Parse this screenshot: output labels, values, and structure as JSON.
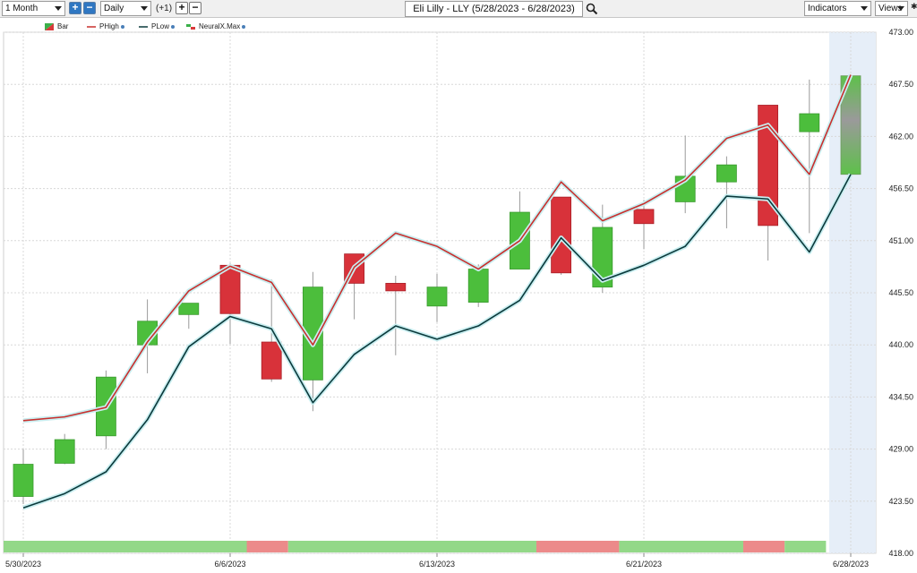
{
  "toolbar": {
    "range_select": "1 Month",
    "interval_select": "Daily",
    "offset_label": "(+1)",
    "plus_label": "+",
    "minus_label": "−",
    "title": "Eli Lilly - LLY (5/28/2023 - 6/28/2023)",
    "indicators_label": "Indicators",
    "views_label": "Views"
  },
  "legend": [
    {
      "label": "Bar",
      "color": "#d83a3a"
    },
    {
      "label": "PHigh",
      "color": "#c8302e"
    },
    {
      "label": "PLow",
      "color": "#0b3a3c"
    },
    {
      "label": "NeuralX.Max",
      "color": "#3ab04a"
    }
  ],
  "colors": {
    "up": "#4cbe3c",
    "down": "#d8323a",
    "phigh": "#c8302e",
    "plow": "#0b3a3c",
    "band_up": "#93d888",
    "band_down": "#ec8a8a",
    "forecast_shade": "#e6eef8"
  },
  "chart_data": {
    "type": "candlestick",
    "title": "Eli Lilly - LLY (5/28/2023 - 6/28/2023)",
    "ylim": [
      418.0,
      473.0
    ],
    "y_ticks": [
      "418.00",
      "423.50",
      "429.00",
      "434.50",
      "440.00",
      "445.50",
      "451.00",
      "456.50",
      "462.00",
      "467.50",
      "473.00"
    ],
    "x_tick_labels": [
      "5/30/2023",
      "6/6/2023",
      "6/13/2023",
      "6/21/2023",
      "6/28/2023"
    ],
    "x_tick_index": [
      0,
      5,
      10,
      15,
      20
    ],
    "bars": [
      {
        "o": 424.0,
        "h": 429.0,
        "l": 423.2,
        "c": 427.4
      },
      {
        "o": 427.5,
        "h": 430.6,
        "l": 427.4,
        "c": 430.0
      },
      {
        "o": 430.4,
        "h": 437.3,
        "l": 429.0,
        "c": 436.6
      },
      {
        "o": 440.0,
        "h": 444.8,
        "l": 437.0,
        "c": 442.5
      },
      {
        "o": 443.2,
        "h": 444.4,
        "l": 441.7,
        "c": 444.4
      },
      {
        "o": 448.4,
        "h": 448.6,
        "l": 440.1,
        "c": 443.3
      },
      {
        "o": 440.3,
        "h": 446.9,
        "l": 436.1,
        "c": 436.4
      },
      {
        "o": 436.3,
        "h": 447.7,
        "l": 433.0,
        "c": 446.1
      },
      {
        "o": 449.6,
        "h": 449.6,
        "l": 442.7,
        "c": 446.5
      },
      {
        "o": 446.5,
        "h": 447.3,
        "l": 438.9,
        "c": 445.7
      },
      {
        "o": 444.1,
        "h": 447.5,
        "l": 442.4,
        "c": 446.1
      },
      {
        "o": 444.5,
        "h": 448.5,
        "l": 444.0,
        "c": 448.0
      },
      {
        "o": 448.0,
        "h": 456.2,
        "l": 448.0,
        "c": 454.0
      },
      {
        "o": 455.6,
        "h": 455.6,
        "l": 447.4,
        "c": 447.6
      },
      {
        "o": 446.1,
        "h": 454.8,
        "l": 445.5,
        "c": 452.4
      },
      {
        "o": 454.3,
        "h": 455.3,
        "l": 450.1,
        "c": 452.8
      },
      {
        "o": 455.1,
        "h": 462.1,
        "l": 453.9,
        "c": 457.8
      },
      {
        "o": 457.2,
        "h": 459.9,
        "l": 452.3,
        "c": 459.0
      },
      {
        "o": 465.3,
        "h": 465.3,
        "l": 448.9,
        "c": 452.6
      },
      {
        "o": 462.5,
        "h": 468.0,
        "l": 451.8,
        "c": 464.4
      },
      {
        "o": 458.0,
        "h": 468.4,
        "l": 458.0,
        "c": 468.4,
        "forecast": true
      }
    ],
    "phigh": [
      432.0,
      432.4,
      433.4,
      440.3,
      445.7,
      448.3,
      446.6,
      440.0,
      448.2,
      451.8,
      450.4,
      448.0,
      451.0,
      457.2,
      453.1,
      454.9,
      457.4,
      461.8,
      463.2,
      458.0,
      468.5
    ],
    "plow": [
      422.8,
      424.3,
      426.6,
      432.1,
      439.8,
      443.0,
      441.7,
      433.9,
      439.0,
      442.0,
      440.6,
      442.0,
      444.7,
      451.3,
      446.8,
      448.4,
      450.4,
      455.7,
      455.4,
      449.8,
      458.0
    ],
    "signal_bands": [
      {
        "from": 0,
        "to": 5.9,
        "state": "up"
      },
      {
        "from": 5.9,
        "to": 6.9,
        "state": "down"
      },
      {
        "from": 6.9,
        "to": 12.9,
        "state": "up"
      },
      {
        "from": 12.9,
        "to": 14.9,
        "state": "down"
      },
      {
        "from": 14.9,
        "to": 17.9,
        "state": "up"
      },
      {
        "from": 17.9,
        "to": 18.9,
        "state": "down"
      },
      {
        "from": 18.9,
        "to": 19.9,
        "state": "up"
      }
    ]
  }
}
